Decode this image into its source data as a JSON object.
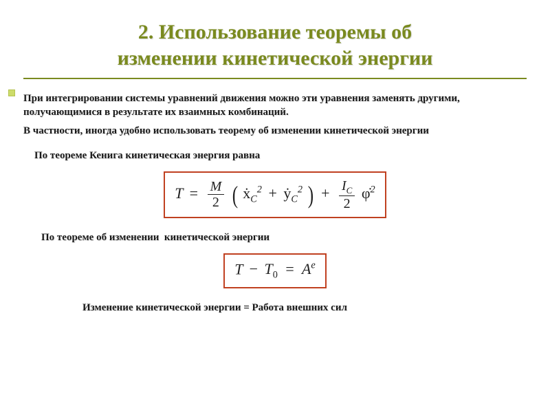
{
  "colors": {
    "title_color": "#7a8a1f",
    "underline_color": "#7a8a1f",
    "bullet_fill": "#cddc6a",
    "bullet_border": "#b5c350",
    "text_color": "#1a1a1a",
    "eq_border": "#c04020",
    "background": "#ffffff"
  },
  "typography": {
    "title_fontsize": 30,
    "body_fontsize": 15,
    "eq_fontsize": 22,
    "font_family": "Georgia, Times New Roman, serif"
  },
  "title": {
    "line1": "2. Использование теоремы об",
    "line2": "изменении кинетической энергии"
  },
  "para1": "При интегрировании системы уравнений движения можно эти уравнения заменять другими, получающимися в результате их взаимных комбинаций.",
  "para2": "В частности, иногда удобно использовать теорему об изменении кинетической энергии",
  "label_koenig": "По теореме Кенига кинетическая энергия равна",
  "eq1": {
    "lhs": "T",
    "eq": "=",
    "frac1_num": "M",
    "frac1_den": "2",
    "term_x": "ẋ",
    "term_x_sub": "C",
    "term_x_sup": "2",
    "plus1": "+",
    "term_y": "ẏ",
    "term_y_sub": "C",
    "term_y_sup": "2",
    "plus2": "+",
    "frac2_num_var": "I",
    "frac2_num_sub": "C",
    "frac2_den": "2",
    "term_phi": "φ̇",
    "term_phi_sup": "2"
  },
  "label_theorem": "По теореме об изменении",
  "label_theorem_tail": "кинетической энергии",
  "eq2": {
    "T": "T",
    "minus": "−",
    "T0": "T",
    "T0_sub": "0",
    "eq": "=",
    "A": "A",
    "A_sup": "e"
  },
  "conclusion": "Изменение кинетической энергии = Работа внешних сил"
}
